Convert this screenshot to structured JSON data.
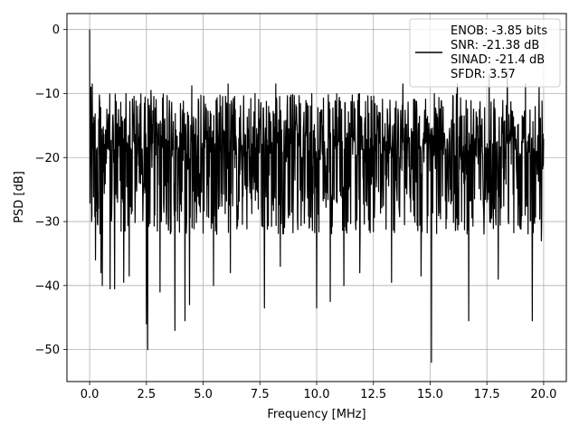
{
  "chart_data": {
    "type": "line",
    "title": "",
    "xlabel": "Frequency [MHz]",
    "ylabel": "PSD [dB]",
    "xlim": [
      -1.0,
      21.0
    ],
    "ylim": [
      -55.0,
      2.5
    ],
    "xticks": [
      0.0,
      2.5,
      5.0,
      7.5,
      10.0,
      12.5,
      15.0,
      17.5,
      20.0
    ],
    "xtick_labels": [
      "0.0",
      "2.5",
      "5.0",
      "7.5",
      "10.0",
      "12.5",
      "15.0",
      "17.5",
      "20.0"
    ],
    "yticks": [
      0,
      -10,
      -20,
      -30,
      -40,
      -50
    ],
    "ytick_labels": [
      "0",
      "−10",
      "−20",
      "−30",
      "−40",
      "−50"
    ],
    "grid": true,
    "legend_position": "top-right",
    "legend": {
      "lines": [
        "ENOB: -3.85 bits",
        "SNR: -21.38 dB",
        "SINAD: -21.4 dB",
        "SFDR: 3.57"
      ]
    },
    "series": [
      {
        "color": "#000000",
        "peak": {
          "x": 0.0,
          "y": 0.0
        },
        "noise_floor_mean": -21.4,
        "noise_upper_band": -10.0,
        "noise_lower_band": -32.0,
        "x_range": [
          0.0,
          20.0
        ],
        "deep_nulls": [
          {
            "x": 0.08,
            "y": -30.0
          },
          {
            "x": 0.25,
            "y": -36.0
          },
          {
            "x": 0.5,
            "y": -38.0
          },
          {
            "x": 0.55,
            "y": -40.0
          },
          {
            "x": 0.9,
            "y": -40.5
          },
          {
            "x": 1.1,
            "y": -40.5
          },
          {
            "x": 1.5,
            "y": -39.5
          },
          {
            "x": 1.75,
            "y": -38.5
          },
          {
            "x": 2.5,
            "y": -46.0
          },
          {
            "x": 2.55,
            "y": -50.0
          },
          {
            "x": 3.1,
            "y": -41.0
          },
          {
            "x": 3.75,
            "y": -47.0
          },
          {
            "x": 4.2,
            "y": -45.5
          },
          {
            "x": 4.4,
            "y": -43.0
          },
          {
            "x": 5.45,
            "y": -40.0
          },
          {
            "x": 6.2,
            "y": -38.0
          },
          {
            "x": 7.7,
            "y": -43.5
          },
          {
            "x": 8.4,
            "y": -37.0
          },
          {
            "x": 10.0,
            "y": -43.5
          },
          {
            "x": 10.6,
            "y": -42.5
          },
          {
            "x": 11.2,
            "y": -40.0
          },
          {
            "x": 11.9,
            "y": -38.0
          },
          {
            "x": 13.3,
            "y": -39.5
          },
          {
            "x": 14.6,
            "y": -38.5
          },
          {
            "x": 15.05,
            "y": -52.0
          },
          {
            "x": 16.7,
            "y": -45.5
          },
          {
            "x": 18.0,
            "y": -39.0
          },
          {
            "x": 19.5,
            "y": -45.5
          },
          {
            "x": 19.9,
            "y": -33.0
          }
        ],
        "tall_spikes": [
          {
            "x": 0.05,
            "y": -9.0
          },
          {
            "x": 0.12,
            "y": -8.5
          },
          {
            "x": 1.6,
            "y": -10.0
          },
          {
            "x": 2.7,
            "y": -9.5
          },
          {
            "x": 4.5,
            "y": -8.8
          },
          {
            "x": 6.1,
            "y": -8.5
          },
          {
            "x": 8.2,
            "y": -8.5
          },
          {
            "x": 11.2,
            "y": -8.8
          },
          {
            "x": 13.8,
            "y": -8.5
          },
          {
            "x": 16.2,
            "y": -8.5
          },
          {
            "x": 17.6,
            "y": -7.0
          },
          {
            "x": 18.4,
            "y": -6.5
          },
          {
            "x": 19.2,
            "y": -8.5
          },
          {
            "x": 19.8,
            "y": -9.0
          }
        ]
      }
    ]
  }
}
